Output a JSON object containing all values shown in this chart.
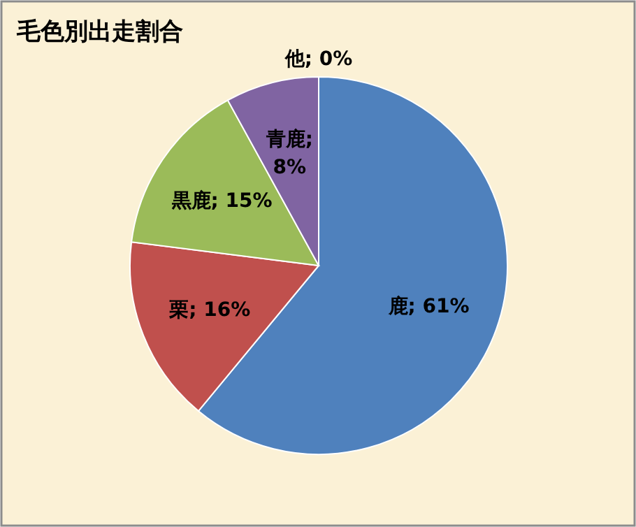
{
  "chart_data": {
    "type": "pie",
    "title": "毛色別出走割合",
    "categories": [
      "鹿",
      "栗",
      "黒鹿",
      "青鹿",
      "他"
    ],
    "values": [
      61,
      16,
      15,
      8,
      0
    ],
    "colors": [
      "#4f81bd",
      "#c0504d",
      "#9bbb59",
      "#8064a2",
      "#4bacc6"
    ],
    "value_labels": [
      "; 61%",
      "; 16%",
      "; 15%",
      "; 8%",
      "; 0%"
    ],
    "legend": false
  }
}
